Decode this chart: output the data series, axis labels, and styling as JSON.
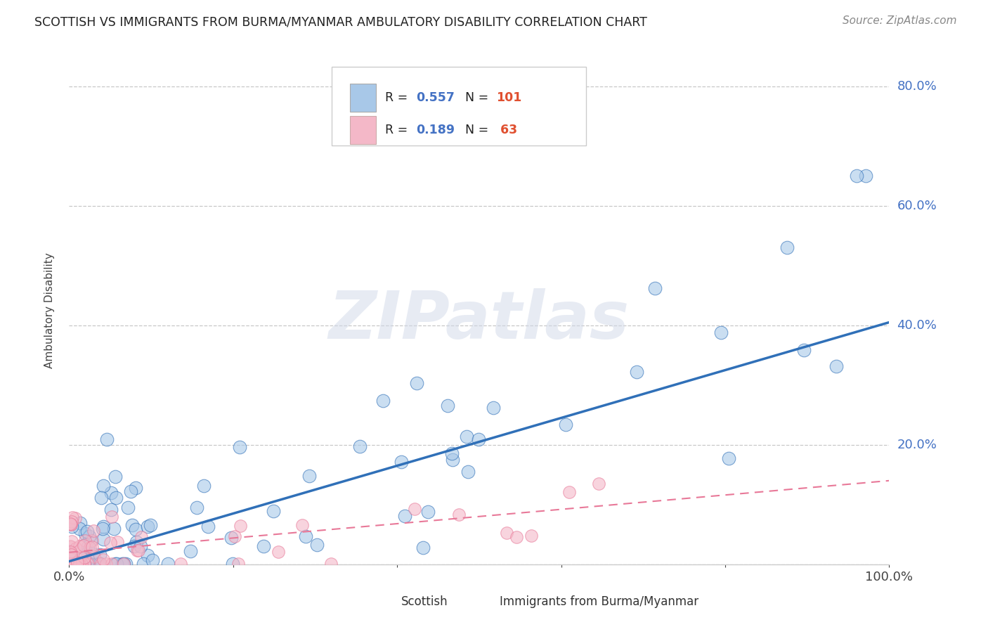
{
  "title": "SCOTTISH VS IMMIGRANTS FROM BURMA/MYANMAR AMBULATORY DISABILITY CORRELATION CHART",
  "source": "Source: ZipAtlas.com",
  "ylabel": "Ambulatory Disability",
  "xlim": [
    0.0,
    1.0
  ],
  "ylim": [
    0.0,
    0.85
  ],
  "ytick_positions": [
    0.0,
    0.2,
    0.4,
    0.6,
    0.8
  ],
  "ytick_labels": [
    "",
    "20.0%",
    "40.0%",
    "60.0%",
    "80.0%"
  ],
  "xtick_positions": [
    0.0,
    0.2,
    0.4,
    0.6,
    0.8,
    1.0
  ],
  "xtick_labels": [
    "0.0%",
    "",
    "",
    "",
    "",
    "100.0%"
  ],
  "legend_r1": "0.557",
  "legend_n1": "101",
  "legend_r2": "0.189",
  "legend_n2": " 63",
  "color_scottish": "#a8c8e8",
  "color_burma": "#f4b8c8",
  "color_line_scottish": "#3070b8",
  "color_line_burma": "#e87898",
  "color_ytick": "#4472c4",
  "watermark_text": "ZIPatlas",
  "background_color": "#ffffff",
  "scottish_slope": 0.4,
  "scottish_intercept": 0.005,
  "burma_slope": 0.12,
  "burma_intercept": 0.02
}
